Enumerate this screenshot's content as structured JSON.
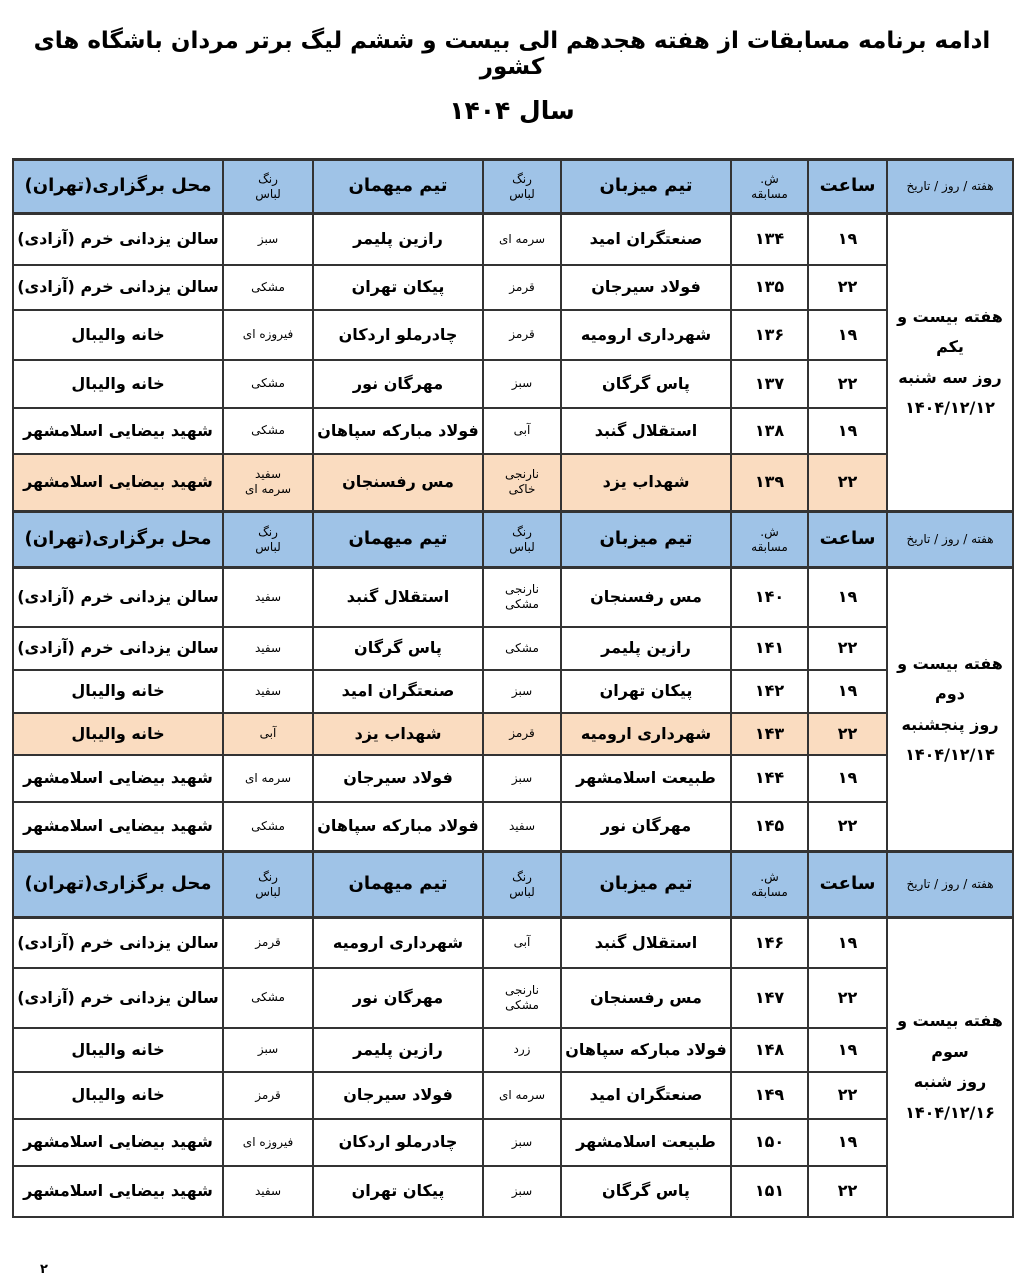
{
  "title": {
    "line1": "ادامه برنامه مسابقات از هفته هجدهم الی بیست و ششم لیگ برتر مردان باشگاه های کشور",
    "line2": "سال ۱۴۰۴"
  },
  "headers": {
    "week": "هفته / روز / تاریخ",
    "time": "ساعت",
    "match_no_1": "ش.",
    "match_no_2": "مسابقه",
    "host": "تیم میزبان",
    "color_1": "رنگ",
    "color_2": "لباس",
    "away": "تیم میهمان",
    "venue": "محل برگزاری(تهران)"
  },
  "colors": {
    "header_bg": "#9fc3e7",
    "highlight_bg": "#fadcc0"
  },
  "sections": [
    {
      "week_lines": [
        "هفته بیست و",
        "یکم",
        "روز سه شنبه",
        "۱۴۰۴/۱۲/۱۲"
      ],
      "rows": [
        {
          "time": "۱۹",
          "no": "۱۳۴",
          "host": "صنعتگران امید",
          "host_color": [
            "سرمه ای"
          ],
          "away": "رازین پلیمر",
          "away_color": [
            "سبز"
          ],
          "venue": "سالن یزدانی خرم (آزادی)",
          "highlight": false
        },
        {
          "time": "۲۲",
          "no": "۱۳۵",
          "host": "فولاد سیرجان",
          "host_color": [
            "قرمز"
          ],
          "away": "پیکان تهران",
          "away_color": [
            "مشکی"
          ],
          "venue": "سالن یزدانی خرم (آزادی)",
          "highlight": false
        },
        {
          "time": "۱۹",
          "no": "۱۳۶",
          "host": "شهرداری ارومیه",
          "host_color": [
            "قرمز"
          ],
          "away": "چادرملو اردکان",
          "away_color": [
            "فیروزه ای"
          ],
          "venue": "خانه والیبال",
          "highlight": false
        },
        {
          "time": "۲۲",
          "no": "۱۳۷",
          "host": "پاس گرگان",
          "host_color": [
            "سبز"
          ],
          "away": "مهرگان نور",
          "away_color": [
            "مشکی"
          ],
          "venue": "خانه والیبال",
          "highlight": false
        },
        {
          "time": "۱۹",
          "no": "۱۳۸",
          "host": "استقلال گنبد",
          "host_color": [
            "آبی"
          ],
          "away": "فولاد مبارکه سپاهان",
          "away_color": [
            "مشکی"
          ],
          "venue": "شهید بیضایی اسلامشهر",
          "highlight": false
        },
        {
          "time": "۲۲",
          "no": "۱۳۹",
          "host": "شهداب یزد",
          "host_color": [
            "نارنجی",
            "خاکی"
          ],
          "away": "مس رفسنجان",
          "away_color": [
            "سفید",
            "سرمه ای"
          ],
          "venue": "شهید بیضایی اسلامشهر",
          "highlight": true
        }
      ]
    },
    {
      "week_lines": [
        "هفته بیست و",
        "دوم",
        "روز پنجشنبه",
        "۱۴۰۴/۱۲/۱۴"
      ],
      "rows": [
        {
          "time": "۱۹",
          "no": "۱۴۰",
          "host": "مس رفسنجان",
          "host_color": [
            "نارنجی",
            "مشکی"
          ],
          "away": "استقلال گنبد",
          "away_color": [
            "سفید"
          ],
          "venue": "سالن یزدانی خرم (آزادی)",
          "highlight": false
        },
        {
          "time": "۲۲",
          "no": "۱۴۱",
          "host": "رازین پلیمر",
          "host_color": [
            "مشکی"
          ],
          "away": "پاس گرگان",
          "away_color": [
            "سفید"
          ],
          "venue": "سالن یزدانی خرم (آزادی)",
          "highlight": false
        },
        {
          "time": "۱۹",
          "no": "۱۴۲",
          "host": "پیکان تهران",
          "host_color": [
            "سبز"
          ],
          "away": "صنعتگران امید",
          "away_color": [
            "سفید"
          ],
          "venue": "خانه والیبال",
          "highlight": false
        },
        {
          "time": "۲۲",
          "no": "۱۴۳",
          "host": "شهرداری ارومیه",
          "host_color": [
            "قرمز"
          ],
          "away": "شهداب یزد",
          "away_color": [
            "آبی"
          ],
          "venue": "خانه والیبال",
          "highlight": true
        },
        {
          "time": "۱۹",
          "no": "۱۴۴",
          "host": "طبیعت اسلامشهر",
          "host_color": [
            "سبز"
          ],
          "away": "فولاد سیرجان",
          "away_color": [
            "سرمه ای"
          ],
          "venue": "شهید بیضایی اسلامشهر",
          "highlight": false
        },
        {
          "time": "۲۲",
          "no": "۱۴۵",
          "host": "مهرگان نور",
          "host_color": [
            "سفید"
          ],
          "away": "فولاد مبارکه سپاهان",
          "away_color": [
            "مشکی"
          ],
          "venue": "شهید بیضایی اسلامشهر",
          "highlight": false
        }
      ]
    },
    {
      "week_lines": [
        "هفته بیست و",
        "سوم",
        "روز شنبه",
        "۱۴۰۴/۱۲/۱۶"
      ],
      "rows": [
        {
          "time": "۱۹",
          "no": "۱۴۶",
          "host": "استقلال گنبد",
          "host_color": [
            "آبی"
          ],
          "away": "شهرداری ارومیه",
          "away_color": [
            "قرمز"
          ],
          "venue": "سالن یزدانی خرم (آزادی)",
          "highlight": false
        },
        {
          "time": "۲۲",
          "no": "۱۴۷",
          "host": "مس رفسنجان",
          "host_color": [
            "نارنجی",
            "مشکی"
          ],
          "away": "مهرگان نور",
          "away_color": [
            "مشکی"
          ],
          "venue": "سالن یزدانی خرم (آزادی)",
          "highlight": false
        },
        {
          "time": "۱۹",
          "no": "۱۴۸",
          "host": "فولاد مبارکه سپاهان",
          "host_color": [
            "زرد"
          ],
          "away": "رازین پلیمر",
          "away_color": [
            "سبز"
          ],
          "venue": "خانه والیبال",
          "highlight": false
        },
        {
          "time": "۲۲",
          "no": "۱۴۹",
          "host": "صنعتگران امید",
          "host_color": [
            "سرمه ای"
          ],
          "away": "فولاد سیرجان",
          "away_color": [
            "قرمز"
          ],
          "venue": "خانه والیبال",
          "highlight": false
        },
        {
          "time": "۱۹",
          "no": "۱۵۰",
          "host": "طبیعت اسلامشهر",
          "host_color": [
            "سبز"
          ],
          "away": "چادرملو اردکان",
          "away_color": [
            "فیروزه ای"
          ],
          "venue": "شهید بیضایی اسلامشهر",
          "highlight": false
        },
        {
          "time": "۲۲",
          "no": "۱۵۱",
          "host": "پاس گرگان",
          "host_color": [
            "سبز"
          ],
          "away": "پیکان تهران",
          "away_color": [
            "سفید"
          ],
          "venue": "شهید بیضایی اسلامشهر",
          "highlight": false
        }
      ]
    }
  ],
  "page_number": "۲"
}
